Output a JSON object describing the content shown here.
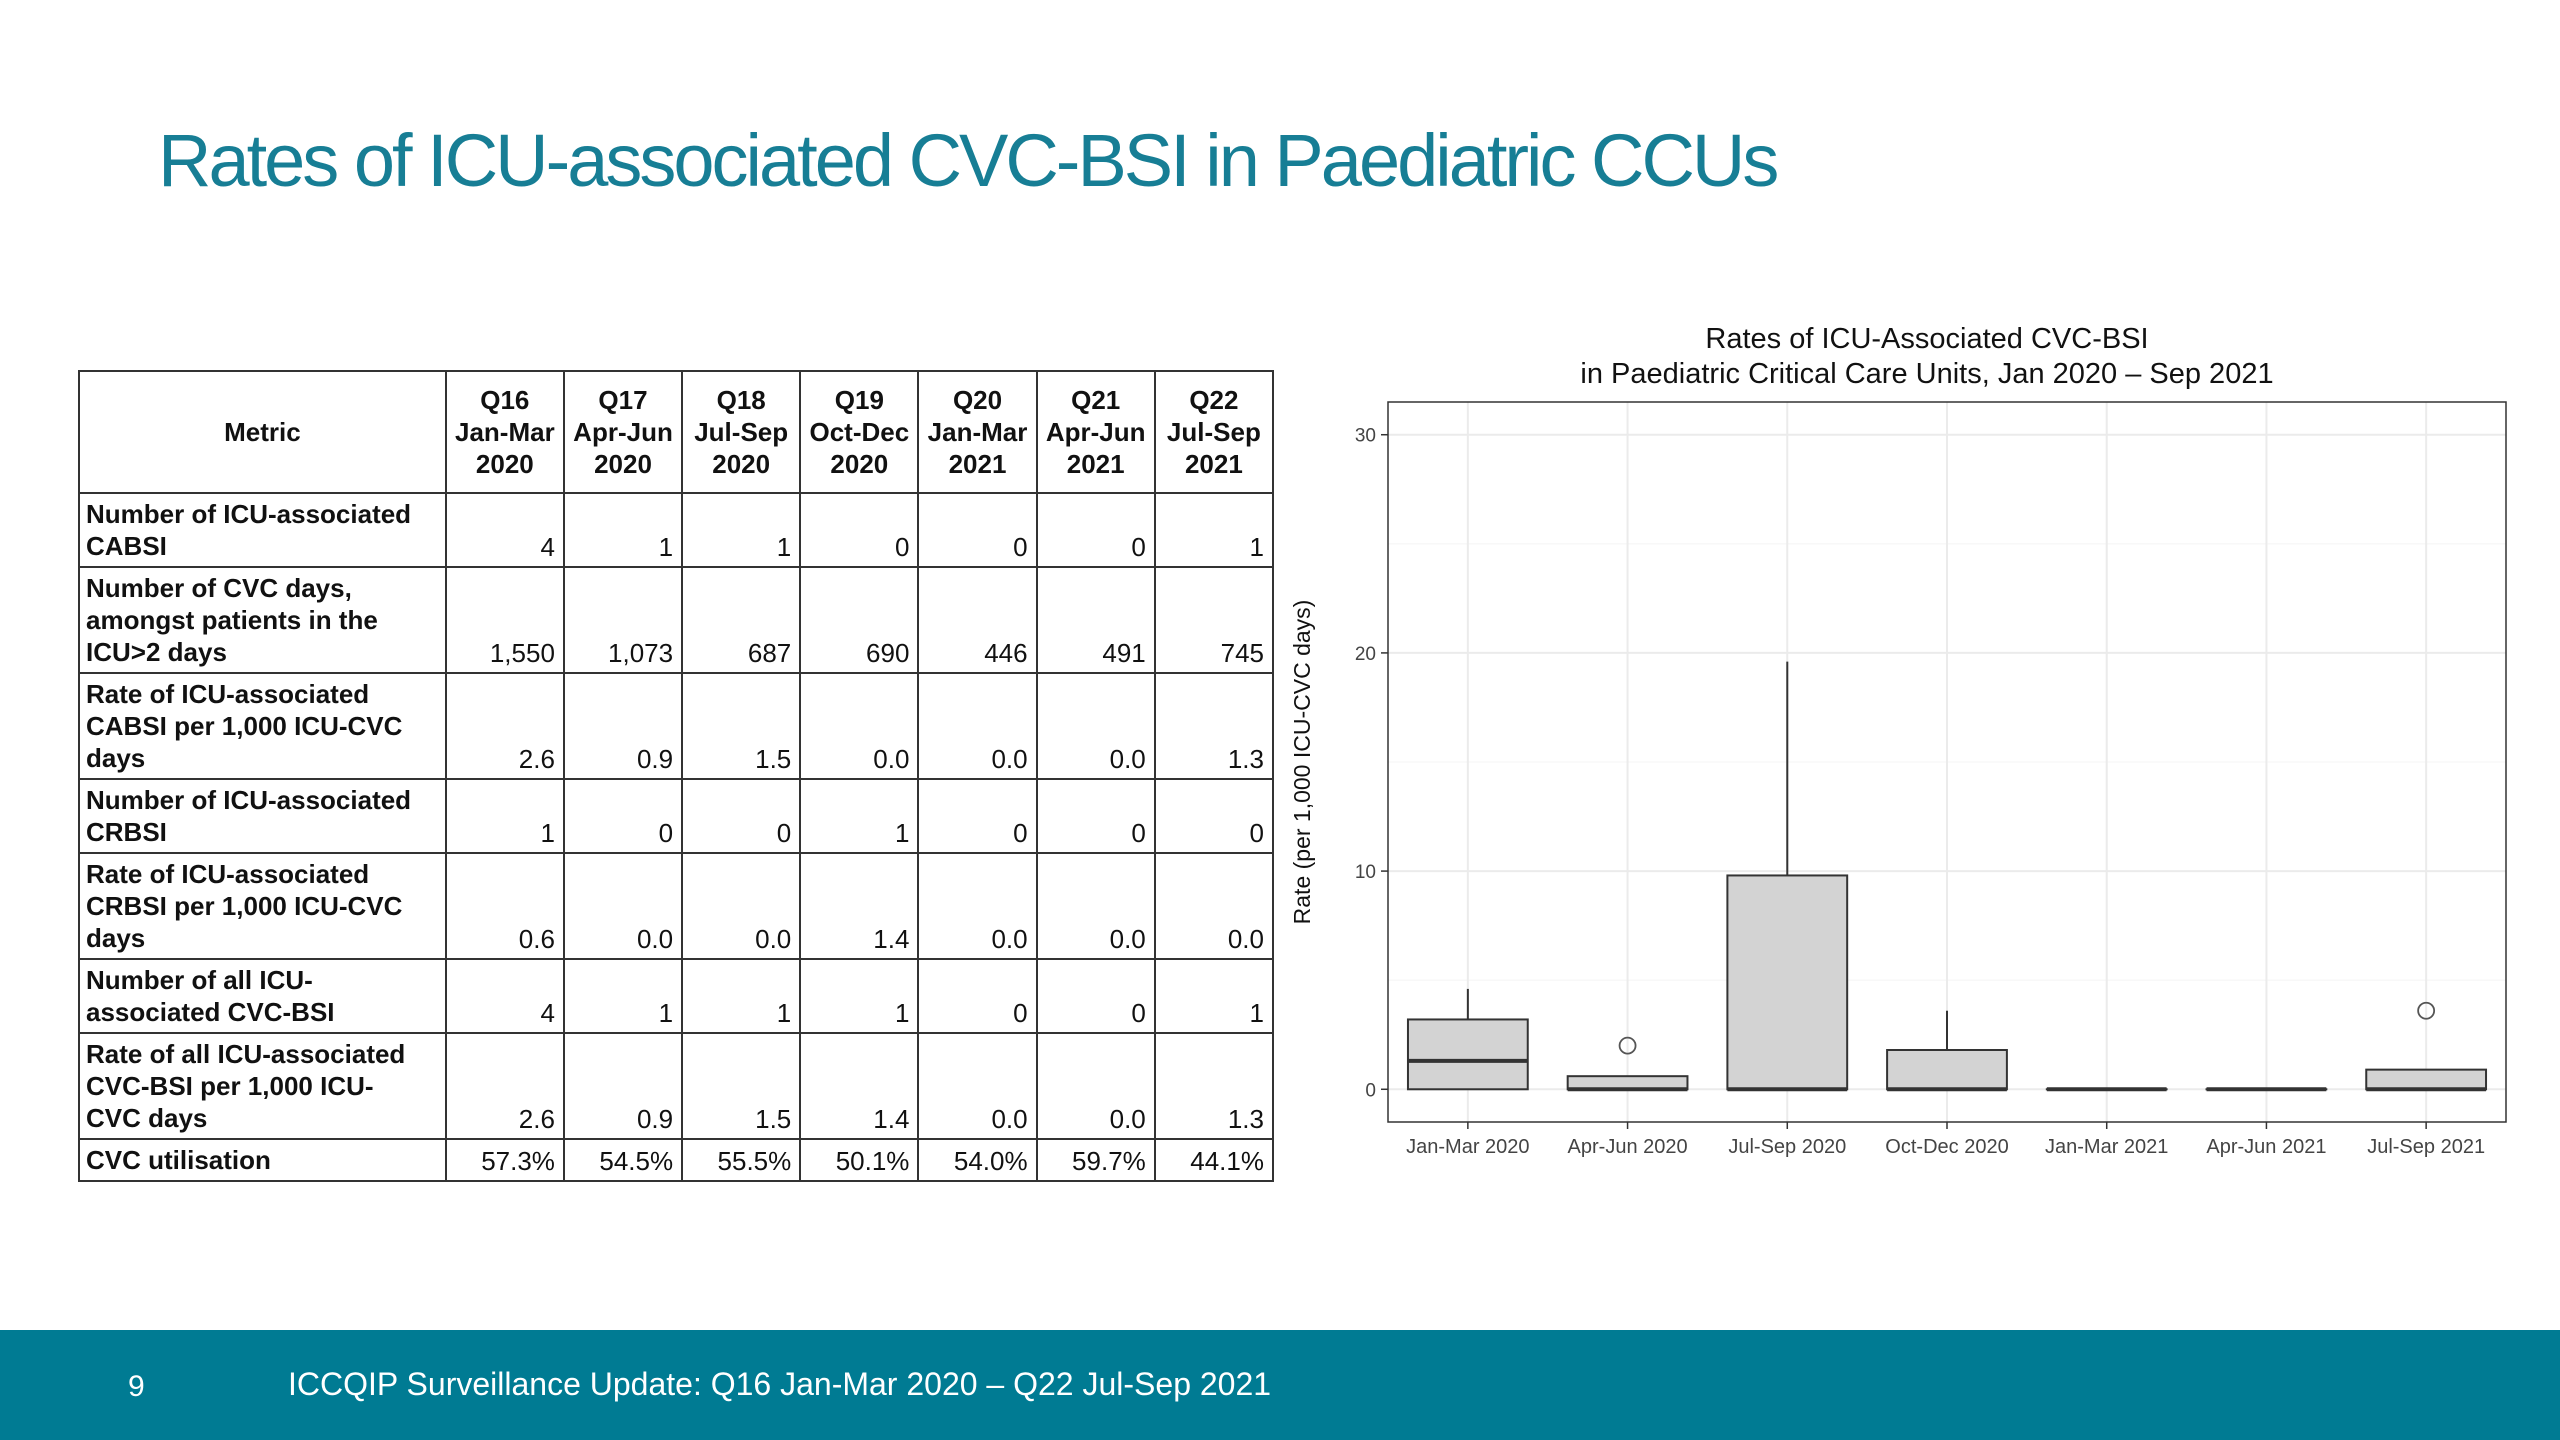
{
  "title": "Rates of ICU-associated CVC-BSI in Paediatric CCUs",
  "table": {
    "header_metric": "Metric",
    "columns": [
      {
        "q": "Q16",
        "period": "Jan-Mar",
        "year": "2020"
      },
      {
        "q": "Q17",
        "period": "Apr-Jun",
        "year": "2020"
      },
      {
        "q": "Q18",
        "period": "Jul-Sep",
        "year": "2020"
      },
      {
        "q": "Q19",
        "period": "Oct-Dec",
        "year": "2020"
      },
      {
        "q": "Q20",
        "period": "Jan-Mar",
        "year": "2021"
      },
      {
        "q": "Q21",
        "period": "Apr-Jun",
        "year": "2021"
      },
      {
        "q": "Q22",
        "period": "Jul-Sep",
        "year": "2021"
      }
    ],
    "rows": [
      {
        "label": [
          "Number of ICU-associated",
          "CABSI"
        ],
        "values": [
          "4",
          "1",
          "1",
          "0",
          "0",
          "0",
          "1"
        ]
      },
      {
        "label": [
          "Number of CVC days,",
          "amongst patients in the",
          "ICU>2 days"
        ],
        "values": [
          "1,550",
          "1,073",
          "687",
          "690",
          "446",
          "491",
          "745"
        ]
      },
      {
        "label": [
          "Rate of ICU-associated",
          "CABSI  per 1,000 ICU-CVC",
          "days"
        ],
        "values": [
          "2.6",
          "0.9",
          "1.5",
          "0.0",
          "0.0",
          "0.0",
          "1.3"
        ]
      },
      {
        "label": [
          "Number of ICU-associated",
          "CRBSI"
        ],
        "values": [
          "1",
          "0",
          "0",
          "1",
          "0",
          "0",
          "0"
        ]
      },
      {
        "label": [
          "Rate of ICU-associated",
          "CRBSI per 1,000 ICU-CVC",
          "days"
        ],
        "values": [
          "0.6",
          "0.0",
          "0.0",
          "1.4",
          "0.0",
          "0.0",
          "0.0"
        ]
      },
      {
        "label": [
          "Number of all ICU-",
          "associated CVC-BSI"
        ],
        "values": [
          "4",
          "1",
          "1",
          "1",
          "0",
          "0",
          "1"
        ]
      },
      {
        "label": [
          "Rate of all ICU-associated",
          "CVC-BSI per 1,000 ICU-",
          "CVC days"
        ],
        "values": [
          "2.6",
          "0.9",
          "1.5",
          "1.4",
          "0.0",
          "0.0",
          "1.3"
        ]
      },
      {
        "label": [
          "CVC utilisation"
        ],
        "values": [
          "57.3%",
          "54.5%",
          "55.5%",
          "50.1%",
          "54.0%",
          "59.7%",
          "44.1%"
        ]
      }
    ]
  },
  "chart_data": {
    "type": "boxplot",
    "title": [
      "Rates of ICU-Associated CVC-BSI",
      "in Paediatric Critical Care Units, Jan 2020 – Sep 2021"
    ],
    "xlabel": "",
    "ylabel": "Rate (per 1,000 ICU-CVC days)",
    "ylim": [
      -1.5,
      31.5
    ],
    "yticks": [
      0,
      10,
      20,
      30
    ],
    "grid": true,
    "categories": [
      "Jan-Mar 2020",
      "Apr-Jun 2020",
      "Jul-Sep 2020",
      "Oct-Dec 2020",
      "Jan-Mar 2021",
      "Apr-Jun 2021",
      "Jul-Sep 2021"
    ],
    "boxes": [
      {
        "min": 0,
        "q1": 0,
        "median": 1.3,
        "q3": 3.2,
        "max": 4.6,
        "outliers": []
      },
      {
        "min": 0,
        "q1": 0,
        "median": 0,
        "q3": 0.6,
        "max": 0.6,
        "outliers": [
          2.0
        ]
      },
      {
        "min": 0,
        "q1": 0,
        "median": 0,
        "q3": 9.8,
        "max": 19.6,
        "outliers": []
      },
      {
        "min": 0,
        "q1": 0,
        "median": 0,
        "q3": 1.8,
        "max": 3.6,
        "outliers": []
      },
      {
        "min": 0,
        "q1": 0,
        "median": 0,
        "q3": 0,
        "max": 0,
        "outliers": []
      },
      {
        "min": 0,
        "q1": 0,
        "median": 0,
        "q3": 0,
        "max": 0,
        "outliers": []
      },
      {
        "min": 0,
        "q1": 0,
        "median": 0,
        "q3": 0.9,
        "max": 0.9,
        "outliers": [
          3.6
        ]
      }
    ],
    "colors": {
      "box_fill": "#d3d3d3",
      "box_stroke": "#333333",
      "grid": "#ebebeb",
      "panel_border": "#333333"
    }
  },
  "footer": {
    "page_number": "9",
    "text": "ICCQIP Surveillance Update: Q16 Jan-Mar 2020 – Q22 Jul-Sep 2021"
  }
}
